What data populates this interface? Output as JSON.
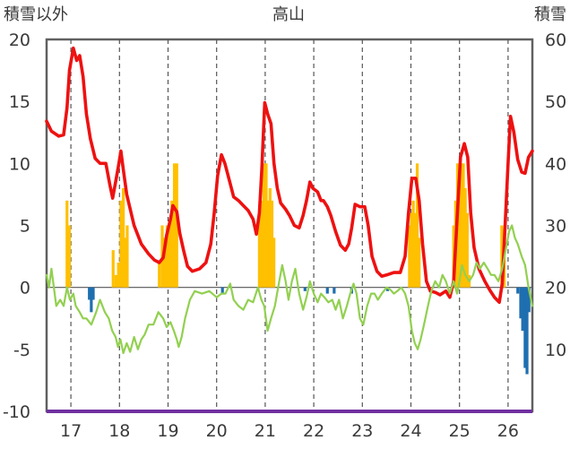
{
  "chart_data": {
    "type": "line",
    "title": "高山",
    "ylabel_left": "積雪以外",
    "ylabel_right": "積雪",
    "x_categories": [
      "17",
      "18",
      "19",
      "20",
      "21",
      "22",
      "23",
      "24",
      "25",
      "26"
    ],
    "xlim": [
      16.5,
      26.5
    ],
    "ylim_left": [
      -10,
      20
    ],
    "ylim_right": [
      0,
      60
    ],
    "yticks_left": [
      "20",
      "15",
      "10",
      "5",
      "0",
      "-5",
      "-10"
    ],
    "yticks_right": [
      "60",
      "50",
      "40",
      "30",
      "20",
      "10"
    ],
    "grid": "vertical-dashed-daily",
    "colors": {
      "red_line": "#ee1111",
      "green_line": "#92d050",
      "yellow_bars": "#ffc000",
      "blue_bars": "#1f6fb0",
      "baseline": "#7030a0",
      "axis": "#606060"
    },
    "series": [
      {
        "axis": "left",
        "color": "#ee1111",
        "points": [
          [
            16.5,
            13.4
          ],
          [
            16.6,
            12.6
          ],
          [
            16.75,
            12.2
          ],
          [
            16.85,
            12.3
          ],
          [
            16.92,
            14.5
          ],
          [
            16.97,
            17.5
          ],
          [
            17.05,
            19.3
          ],
          [
            17.12,
            18.3
          ],
          [
            17.18,
            18.7
          ],
          [
            17.25,
            17.0
          ],
          [
            17.32,
            14.0
          ],
          [
            17.4,
            12.0
          ],
          [
            17.5,
            10.4
          ],
          [
            17.6,
            10.0
          ],
          [
            17.72,
            10.0
          ],
          [
            17.8,
            8.3
          ],
          [
            17.86,
            7.2
          ],
          [
            17.92,
            8.5
          ],
          [
            17.98,
            9.8
          ],
          [
            18.03,
            11.0
          ],
          [
            18.08,
            9.5
          ],
          [
            18.15,
            7.5
          ],
          [
            18.3,
            5.0
          ],
          [
            18.45,
            3.5
          ],
          [
            18.6,
            2.7
          ],
          [
            18.72,
            2.2
          ],
          [
            18.82,
            2.0
          ],
          [
            18.9,
            2.4
          ],
          [
            18.97,
            4.2
          ],
          [
            19.05,
            5.5
          ],
          [
            19.1,
            6.6
          ],
          [
            19.18,
            6.1
          ],
          [
            19.24,
            4.4
          ],
          [
            19.32,
            3.0
          ],
          [
            19.4,
            1.7
          ],
          [
            19.5,
            1.3
          ],
          [
            19.65,
            1.5
          ],
          [
            19.78,
            2.0
          ],
          [
            19.88,
            3.5
          ],
          [
            19.95,
            6.0
          ],
          [
            20.02,
            9.0
          ],
          [
            20.1,
            10.7
          ],
          [
            20.17,
            10.0
          ],
          [
            20.25,
            8.8
          ],
          [
            20.35,
            7.3
          ],
          [
            20.45,
            7.0
          ],
          [
            20.55,
            6.6
          ],
          [
            20.65,
            6.2
          ],
          [
            20.75,
            5.5
          ],
          [
            20.82,
            4.3
          ],
          [
            20.88,
            6.0
          ],
          [
            20.93,
            9.5
          ],
          [
            20.99,
            14.9
          ],
          [
            21.05,
            14.0
          ],
          [
            21.12,
            13.2
          ],
          [
            21.18,
            10.0
          ],
          [
            21.25,
            8.0
          ],
          [
            21.32,
            6.8
          ],
          [
            21.42,
            6.3
          ],
          [
            21.5,
            5.8
          ],
          [
            21.6,
            5.0
          ],
          [
            21.7,
            4.8
          ],
          [
            21.78,
            5.8
          ],
          [
            21.85,
            7.0
          ],
          [
            21.92,
            8.5
          ],
          [
            21.98,
            8.0
          ],
          [
            22.08,
            7.7
          ],
          [
            22.15,
            7.0
          ],
          [
            22.2,
            7.0
          ],
          [
            22.28,
            6.5
          ],
          [
            22.35,
            5.8
          ],
          [
            22.45,
            4.5
          ],
          [
            22.55,
            3.4
          ],
          [
            22.65,
            3.0
          ],
          [
            22.72,
            3.5
          ],
          [
            22.78,
            4.8
          ],
          [
            22.85,
            6.7
          ],
          [
            22.95,
            6.5
          ],
          [
            23.05,
            6.5
          ],
          [
            23.12,
            5.0
          ],
          [
            23.2,
            2.5
          ],
          [
            23.3,
            1.3
          ],
          [
            23.4,
            0.9
          ],
          [
            23.5,
            1.0
          ],
          [
            23.65,
            1.2
          ],
          [
            23.78,
            1.2
          ],
          [
            23.88,
            2.5
          ],
          [
            23.95,
            6.0
          ],
          [
            24.02,
            8.8
          ],
          [
            24.1,
            8.8
          ],
          [
            24.17,
            7.0
          ],
          [
            24.24,
            3.5
          ],
          [
            24.32,
            0.5
          ],
          [
            24.4,
            -0.3
          ],
          [
            24.5,
            -0.4
          ],
          [
            24.6,
            -0.6
          ],
          [
            24.72,
            -0.3
          ],
          [
            24.8,
            -0.8
          ],
          [
            24.88,
            0.5
          ],
          [
            24.95,
            5.5
          ],
          [
            25.02,
            10.5
          ],
          [
            25.1,
            11.6
          ],
          [
            25.17,
            10.5
          ],
          [
            25.23,
            6.0
          ],
          [
            25.3,
            3.2
          ],
          [
            25.4,
            1.5
          ],
          [
            25.52,
            0.5
          ],
          [
            25.62,
            -0.2
          ],
          [
            25.72,
            -0.8
          ],
          [
            25.82,
            -1.2
          ],
          [
            25.88,
            0.3
          ],
          [
            25.94,
            5.0
          ],
          [
            26.0,
            10.0
          ],
          [
            26.05,
            13.8
          ],
          [
            26.12,
            12.5
          ],
          [
            26.2,
            10.3
          ],
          [
            26.28,
            9.3
          ],
          [
            26.35,
            9.2
          ],
          [
            26.42,
            10.5
          ],
          [
            26.5,
            11.0
          ]
        ]
      },
      {
        "axis": "left",
        "color": "#92d050",
        "points": [
          [
            16.5,
            1.0
          ],
          [
            16.55,
            0.0
          ],
          [
            16.6,
            1.5
          ],
          [
            16.65,
            0.0
          ],
          [
            16.7,
            -1.5
          ],
          [
            16.78,
            -1.0
          ],
          [
            16.85,
            -1.5
          ],
          [
            16.92,
            0.0
          ],
          [
            16.98,
            -1.0
          ],
          [
            17.05,
            -0.5
          ],
          [
            17.1,
            -1.5
          ],
          [
            17.18,
            -2.0
          ],
          [
            17.25,
            -2.5
          ],
          [
            17.32,
            -2.5
          ],
          [
            17.42,
            -3.0
          ],
          [
            17.52,
            -2.0
          ],
          [
            17.6,
            -1.0
          ],
          [
            17.7,
            -2.0
          ],
          [
            17.78,
            -2.5
          ],
          [
            17.85,
            -3.5
          ],
          [
            17.92,
            -4.0
          ],
          [
            17.97,
            -4.8
          ],
          [
            18.02,
            -4.2
          ],
          [
            18.08,
            -5.3
          ],
          [
            18.15,
            -4.5
          ],
          [
            18.22,
            -5.2
          ],
          [
            18.3,
            -4.0
          ],
          [
            18.38,
            -5.0
          ],
          [
            18.45,
            -4.2
          ],
          [
            18.52,
            -3.8
          ],
          [
            18.6,
            -3.0
          ],
          [
            18.7,
            -3.0
          ],
          [
            18.8,
            -2.0
          ],
          [
            18.9,
            -2.5
          ],
          [
            18.97,
            -3.2
          ],
          [
            19.05,
            -2.8
          ],
          [
            19.12,
            -3.5
          ],
          [
            19.18,
            -4.2
          ],
          [
            19.22,
            -4.8
          ],
          [
            19.28,
            -4.0
          ],
          [
            19.35,
            -2.5
          ],
          [
            19.45,
            -1.0
          ],
          [
            19.55,
            -0.3
          ],
          [
            19.7,
            -0.5
          ],
          [
            19.85,
            -0.3
          ],
          [
            20.0,
            -0.8
          ],
          [
            20.1,
            -0.5
          ],
          [
            20.18,
            -0.5
          ],
          [
            20.28,
            0.3
          ],
          [
            20.35,
            -1.0
          ],
          [
            20.45,
            -1.5
          ],
          [
            20.55,
            -1.8
          ],
          [
            20.65,
            -1.0
          ],
          [
            20.75,
            -1.2
          ],
          [
            20.85,
            0.0
          ],
          [
            20.92,
            -1.0
          ],
          [
            20.98,
            -1.5
          ],
          [
            21.05,
            -3.5
          ],
          [
            21.12,
            -2.5
          ],
          [
            21.2,
            -1.5
          ],
          [
            21.28,
            0.3
          ],
          [
            21.35,
            1.8
          ],
          [
            21.42,
            0.5
          ],
          [
            21.48,
            -1.0
          ],
          [
            21.55,
            0.5
          ],
          [
            21.62,
            1.5
          ],
          [
            21.7,
            -0.5
          ],
          [
            21.78,
            -1.8
          ],
          [
            21.85,
            -0.8
          ],
          [
            21.92,
            0.5
          ],
          [
            22.0,
            -0.5
          ],
          [
            22.08,
            -1.2
          ],
          [
            22.15,
            -0.5
          ],
          [
            22.22,
            -0.8
          ],
          [
            22.3,
            -1.2
          ],
          [
            22.38,
            -1.0
          ],
          [
            22.45,
            -1.8
          ],
          [
            22.52,
            -1.0
          ],
          [
            22.6,
            -2.5
          ],
          [
            22.68,
            -1.5
          ],
          [
            22.75,
            -0.5
          ],
          [
            22.82,
            0.3
          ],
          [
            22.88,
            -0.5
          ],
          [
            22.95,
            -2.5
          ],
          [
            23.02,
            -3.0
          ],
          [
            23.1,
            -1.5
          ],
          [
            23.18,
            -0.5
          ],
          [
            23.25,
            -0.5
          ],
          [
            23.32,
            -1.0
          ],
          [
            23.4,
            -0.5
          ],
          [
            23.5,
            0.0
          ],
          [
            23.58,
            -0.2
          ],
          [
            23.65,
            -0.5
          ],
          [
            23.72,
            -0.3
          ],
          [
            23.8,
            0.0
          ],
          [
            23.88,
            -0.5
          ],
          [
            23.95,
            -1.5
          ],
          [
            24.02,
            -3.5
          ],
          [
            24.08,
            -4.5
          ],
          [
            24.14,
            -5.0
          ],
          [
            24.2,
            -4.2
          ],
          [
            24.27,
            -3.0
          ],
          [
            24.35,
            -1.5
          ],
          [
            24.42,
            -0.3
          ],
          [
            24.5,
            0.5
          ],
          [
            24.58,
            0.0
          ],
          [
            24.65,
            1.0
          ],
          [
            24.72,
            0.5
          ],
          [
            24.8,
            -0.5
          ],
          [
            24.88,
            0.5
          ],
          [
            24.95,
            -0.5
          ],
          [
            25.0,
            0.5
          ],
          [
            25.05,
            1.8
          ],
          [
            25.12,
            1.0
          ],
          [
            25.2,
            0.5
          ],
          [
            25.28,
            1.0
          ],
          [
            25.35,
            2.0
          ],
          [
            25.42,
            1.5
          ],
          [
            25.5,
            2.0
          ],
          [
            25.58,
            1.5
          ],
          [
            25.65,
            1.0
          ],
          [
            25.72,
            1.0
          ],
          [
            25.8,
            0.5
          ],
          [
            25.88,
            1.5
          ],
          [
            25.95,
            3.0
          ],
          [
            26.02,
            4.5
          ],
          [
            26.08,
            5.0
          ],
          [
            26.14,
            4.0
          ],
          [
            26.2,
            3.5
          ],
          [
            26.28,
            2.5
          ],
          [
            26.35,
            1.8
          ],
          [
            26.42,
            0.0
          ],
          [
            26.5,
            -1.5
          ]
        ]
      }
    ],
    "bars_yellow": {
      "axis": "left",
      "color": "#ffc000",
      "items": [
        [
          16.92,
          7
        ],
        [
          16.97,
          5
        ],
        [
          17.87,
          3
        ],
        [
          17.93,
          1
        ],
        [
          17.98,
          2
        ],
        [
          18.03,
          7
        ],
        [
          18.08,
          8
        ],
        [
          18.12,
          4
        ],
        [
          18.16,
          5
        ],
        [
          18.82,
          2
        ],
        [
          18.88,
          5
        ],
        [
          18.93,
          4
        ],
        [
          18.98,
          5
        ],
        [
          19.03,
          5
        ],
        [
          19.08,
          7
        ],
        [
          19.13,
          10
        ],
        [
          19.18,
          10
        ],
        [
          20.88,
          6
        ],
        [
          20.92,
          7
        ],
        [
          20.97,
          10
        ],
        [
          21.02,
          10
        ],
        [
          21.06,
          7
        ],
        [
          21.1,
          8
        ],
        [
          21.14,
          7
        ],
        [
          21.18,
          4
        ],
        [
          23.97,
          5
        ],
        [
          24.01,
          6
        ],
        [
          24.05,
          7
        ],
        [
          24.09,
          6
        ],
        [
          24.13,
          10
        ],
        [
          24.17,
          4
        ],
        [
          24.88,
          5
        ],
        [
          24.92,
          7
        ],
        [
          24.96,
          10
        ],
        [
          25.0,
          10
        ],
        [
          25.04,
          10
        ],
        [
          25.08,
          10
        ],
        [
          25.12,
          8
        ],
        [
          25.16,
          6
        ],
        [
          25.2,
          1
        ],
        [
          25.87,
          5
        ],
        [
          25.92,
          4
        ]
      ]
    },
    "bars_blue": {
      "axis": "left",
      "color": "#1f6fb0",
      "items": [
        [
          17.38,
          -1
        ],
        [
          17.42,
          -2
        ],
        [
          17.46,
          -1
        ],
        [
          20.12,
          -0.5
        ],
        [
          21.82,
          -0.3
        ],
        [
          22.28,
          -0.5
        ],
        [
          22.42,
          -0.5
        ],
        [
          22.78,
          -0.5
        ],
        [
          23.52,
          -0.3
        ],
        [
          26.2,
          -0.5
        ],
        [
          26.26,
          -2.5
        ],
        [
          26.3,
          -3.5
        ],
        [
          26.35,
          -6.5
        ],
        [
          26.39,
          -7
        ],
        [
          26.43,
          -2
        ]
      ]
    }
  }
}
